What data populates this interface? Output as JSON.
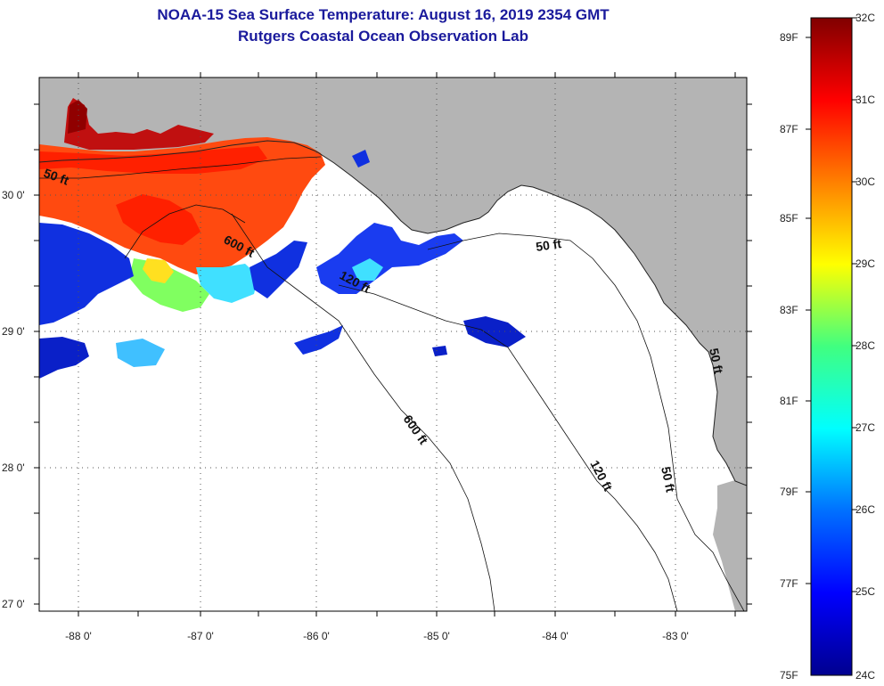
{
  "header": {
    "title": "NOAA-15 Sea Surface Temperature:  August 16, 2019 2354 GMT",
    "subtitle": "Rutgers Coastal Ocean Observation Lab"
  },
  "map": {
    "lat_labels": [
      "30 0'",
      "29 0'",
      "28 0'",
      "27 0'"
    ],
    "lon_labels": [
      "-88 0'",
      "-87 0'",
      "-86 0'",
      "-85 0'",
      "-84 0'",
      "-83 0'"
    ],
    "depth_labels": [
      "50 ft",
      "600 ft",
      "120 ft",
      "50 ft",
      "600 ft",
      "120 ft",
      "50 ft",
      "50 ft"
    ],
    "colors": {
      "land": "#b4b4b4",
      "ocean": "#ffffff"
    }
  },
  "colorbar": {
    "f_labels": [
      "89F",
      "87F",
      "85F",
      "83F",
      "81F",
      "79F",
      "77F",
      "75F"
    ],
    "c_labels": [
      "32C",
      "31C",
      "30C",
      "29C",
      "28C",
      "27C",
      "26C",
      "25C",
      "24C"
    ]
  }
}
